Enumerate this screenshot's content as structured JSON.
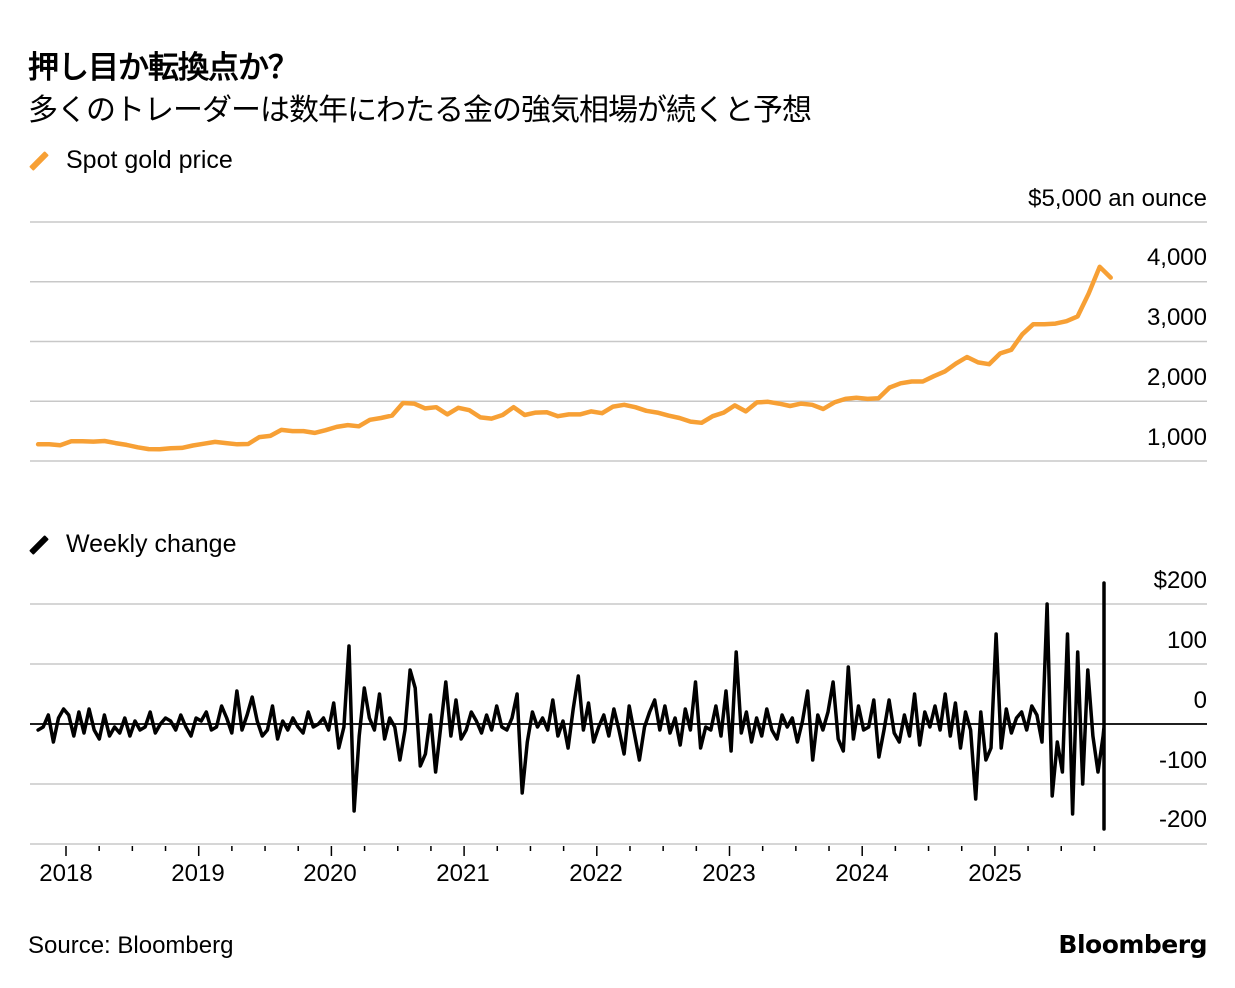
{
  "header": {
    "title": "押し目か転換点か？",
    "subtitle": "多くのトレーダーは数年にわたる金の強気相場が続くと予想"
  },
  "footer": {
    "source": "Source: Bloomberg",
    "brand": "Bloomberg"
  },
  "colors": {
    "gold": "#f7a035",
    "change": "#000000",
    "grid": "#c8c8c8",
    "zero": "#000000"
  },
  "chart_data": [
    {
      "type": "line",
      "title": "Spot gold price",
      "legend": "Spot gold price",
      "legend_position": "top-left",
      "unit_label": "$5,000 an ounce",
      "ylim": [
        1000,
        5000
      ],
      "yticks": [
        1000,
        2000,
        3000,
        4000,
        5000
      ],
      "ytick_labels": [
        "1,000",
        "2,000",
        "3,000",
        "4,000"
      ],
      "grid": true,
      "x_start": 2017.79,
      "x_step_years": 0.08333,
      "values": [
        1280,
        1280,
        1265,
        1330,
        1330,
        1325,
        1335,
        1300,
        1270,
        1230,
        1200,
        1195,
        1215,
        1220,
        1260,
        1290,
        1320,
        1300,
        1280,
        1285,
        1400,
        1420,
        1520,
        1500,
        1500,
        1470,
        1515,
        1570,
        1600,
        1580,
        1690,
        1720,
        1760,
        1970,
        1960,
        1880,
        1900,
        1780,
        1890,
        1850,
        1730,
        1710,
        1770,
        1900,
        1770,
        1810,
        1815,
        1750,
        1780,
        1780,
        1830,
        1800,
        1910,
        1940,
        1900,
        1840,
        1810,
        1760,
        1720,
        1660,
        1640,
        1750,
        1810,
        1930,
        1830,
        1980,
        1990,
        1960,
        1920,
        1960,
        1940,
        1870,
        1980,
        2040,
        2060,
        2040,
        2050,
        2230,
        2300,
        2330,
        2330,
        2420,
        2500,
        2630,
        2740,
        2650,
        2620,
        2800,
        2860,
        3120,
        3290,
        3290,
        3300,
        3340,
        3420,
        3800,
        4250,
        4070
      ]
    },
    {
      "type": "line",
      "title": "Weekly change",
      "legend": "Weekly change",
      "legend_position": "middle-left",
      "ylim": [
        -200,
        200
      ],
      "yticks": [
        -200,
        -100,
        0,
        100,
        200
      ],
      "ytick_labels": [
        "-200",
        "-100",
        "0",
        "100",
        "$200"
      ],
      "grid": true,
      "x_start": 2017.79,
      "x_step_years": 0.0384,
      "values": [
        -10,
        -5,
        15,
        -30,
        10,
        25,
        15,
        -20,
        20,
        -15,
        25,
        -10,
        -25,
        15,
        -20,
        -5,
        -15,
        10,
        -20,
        5,
        -10,
        -5,
        20,
        -15,
        0,
        10,
        5,
        -10,
        15,
        -5,
        -20,
        10,
        5,
        20,
        -10,
        -5,
        30,
        10,
        -15,
        55,
        -10,
        15,
        45,
        5,
        -20,
        -10,
        30,
        -25,
        5,
        -10,
        10,
        -5,
        -15,
        20,
        -5,
        0,
        10,
        -10,
        35,
        -40,
        -5,
        130,
        -145,
        -20,
        60,
        10,
        -10,
        50,
        -25,
        10,
        -5,
        -60,
        -10,
        90,
        60,
        -70,
        -50,
        15,
        -80,
        -5,
        70,
        -20,
        40,
        -25,
        -10,
        20,
        5,
        -15,
        15,
        -10,
        30,
        -5,
        -10,
        10,
        50,
        -115,
        -30,
        20,
        -5,
        10,
        -10,
        40,
        -20,
        5,
        -40,
        25,
        80,
        -10,
        35,
        -30,
        -5,
        15,
        -20,
        25,
        -10,
        -50,
        30,
        -15,
        -60,
        -5,
        20,
        40,
        -10,
        30,
        -15,
        10,
        -35,
        25,
        -10,
        70,
        -40,
        -5,
        -10,
        30,
        -20,
        55,
        -45,
        120,
        -15,
        20,
        -30,
        10,
        -20,
        25,
        -10,
        -25,
        15,
        -5,
        10,
        -30,
        5,
        55,
        -60,
        15,
        -10,
        20,
        70,
        -25,
        -45,
        95,
        -25,
        30,
        -10,
        -5,
        40,
        -55,
        -10,
        40,
        -15,
        -30,
        15,
        -20,
        50,
        -35,
        20,
        -5,
        30,
        -10,
        50,
        -20,
        35,
        -40,
        20,
        -10,
        -125,
        20,
        -60,
        -40,
        150,
        -40,
        25,
        -15,
        10,
        20,
        -10,
        30,
        15,
        -30,
        200,
        -120,
        -30,
        -80,
        150,
        -150,
        120,
        -100,
        90,
        -20,
        -80,
        -20,
        -5,
        35,
        -15,
        20,
        -45,
        100,
        30,
        60,
        40,
        120,
        235,
        -175
      ]
    }
  ],
  "xaxis": {
    "tick_labels": [
      "2018",
      "2019",
      "2020",
      "2021",
      "2022",
      "2023",
      "2024",
      "2025"
    ],
    "tick_years": [
      2018,
      2019,
      2020,
      2021,
      2022,
      2023,
      2024,
      2025
    ],
    "minor_ticks_per_year": 4,
    "xlim": [
      2017.72,
      2026.6
    ]
  }
}
